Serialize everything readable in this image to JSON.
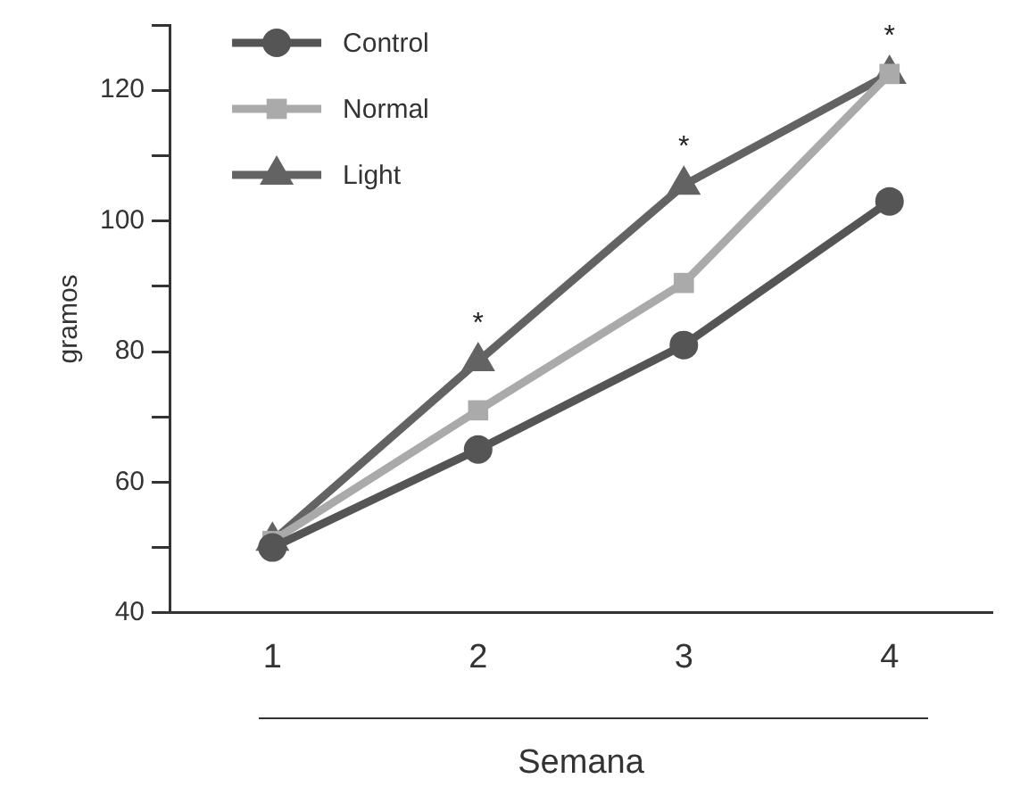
{
  "chart_data": {
    "type": "line",
    "xlabel": "Semana",
    "ylabel": "gramos",
    "categories": [
      "1",
      "2",
      "3",
      "4"
    ],
    "series": [
      {
        "name": "Control",
        "color": "#555555",
        "marker": "circle",
        "values": [
          50,
          65,
          81,
          103
        ]
      },
      {
        "name": "Normal",
        "color": "#aaaaab",
        "marker": "square",
        "values": [
          51,
          71,
          90.5,
          122.5
        ]
      },
      {
        "name": "Light",
        "color": "#636363",
        "marker": "triangle",
        "values": [
          51,
          78.5,
          105.5,
          122.5
        ]
      }
    ],
    "ylim": [
      40,
      130
    ],
    "yticks": [
      40,
      {
        "value": 50,
        "label": null
      },
      60,
      {
        "value": 70,
        "label": null
      },
      80,
      {
        "value": 90,
        "label": null
      },
      100,
      {
        "value": 110,
        "label": null
      },
      120,
      {
        "value": 130,
        "label": null
      }
    ],
    "annotations": [
      {
        "text": "*",
        "x": "2",
        "y": 78.5
      },
      {
        "text": "*",
        "x": "3",
        "y": 105.5
      },
      {
        "text": "*",
        "x": "4",
        "y": 122.5
      }
    ],
    "grid": false,
    "legend": "top left",
    "line_style": "solid"
  }
}
